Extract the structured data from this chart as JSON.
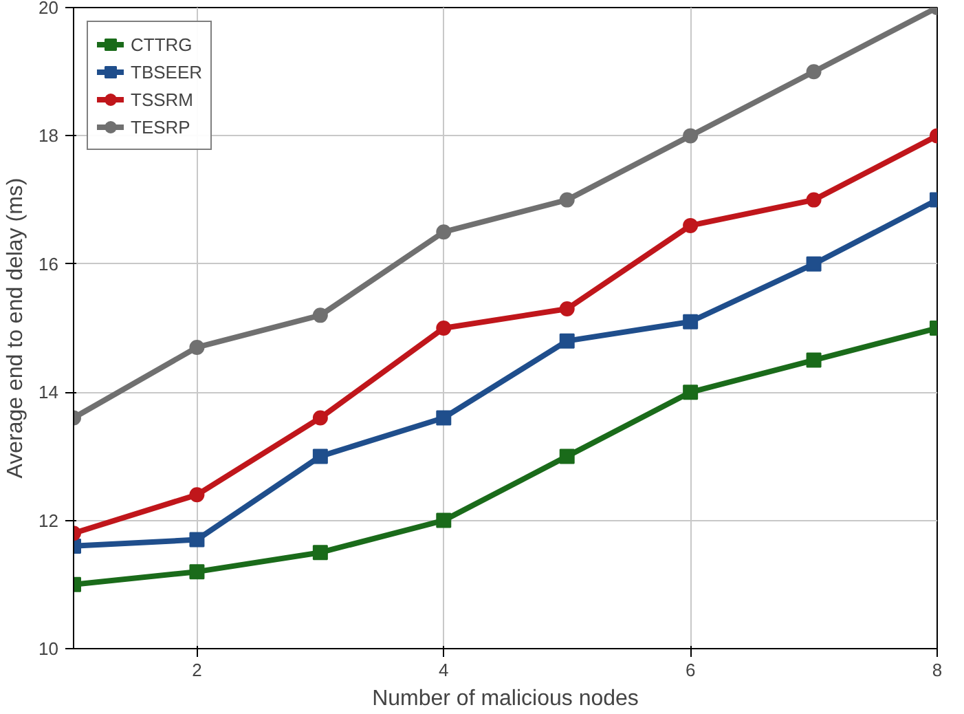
{
  "chart_data": {
    "type": "line",
    "xlabel": "Number of malicious nodes",
    "ylabel": "Average end to end delay (ms)",
    "x": [
      1,
      2,
      3,
      4,
      5,
      6,
      7,
      8
    ],
    "series": [
      {
        "name": "CTTRG",
        "color": "#1a6b1a",
        "marker": "square",
        "values": [
          11,
          11.2,
          11.5,
          12,
          13,
          14,
          14.5,
          15
        ]
      },
      {
        "name": "TBSEER",
        "color": "#1f4e8c",
        "marker": "square",
        "values": [
          11.6,
          11.7,
          13,
          13.6,
          14.8,
          15.1,
          16,
          17
        ]
      },
      {
        "name": "TSSRM",
        "color": "#c0161b",
        "marker": "circle",
        "values": [
          11.8,
          12.4,
          13.6,
          15,
          15.3,
          16.6,
          17,
          18
        ]
      },
      {
        "name": "TESRP",
        "color": "#707070",
        "marker": "circle",
        "values": [
          13.6,
          14.7,
          15.2,
          16.5,
          17,
          18,
          19,
          20
        ]
      }
    ],
    "xlim": [
      1,
      8
    ],
    "ylim": [
      10,
      20
    ],
    "xticks": [
      2,
      4,
      6,
      8
    ],
    "yticks": [
      10,
      12,
      14,
      16,
      18,
      20
    ],
    "grid": true,
    "legend": "top left",
    "line_style": "solid"
  }
}
